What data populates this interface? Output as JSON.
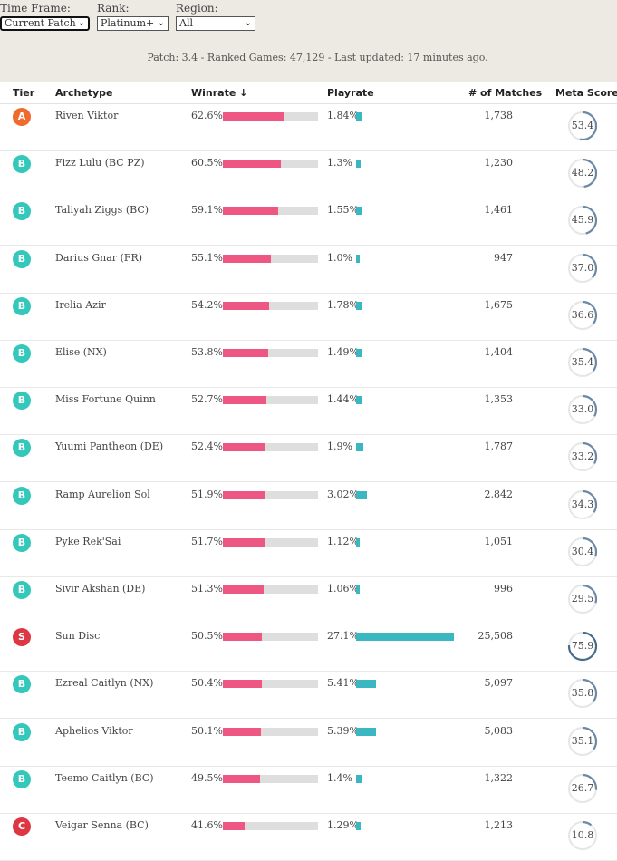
{
  "filters": {
    "time_frame": {
      "label": "Time Frame:",
      "value": "Current Patch"
    },
    "rank": {
      "label": "Rank:",
      "value": "Platinum+"
    },
    "region": {
      "label": "Region:",
      "value": "All"
    }
  },
  "summary": "Patch: 3.4 - Ranked Games: 47,129 - Last updated: 17 minutes ago.",
  "columns": {
    "tier": "Tier",
    "archetype": "Archetype",
    "winrate": "Winrate ↓",
    "playrate": "Playrate",
    "matches": "# of Matches",
    "meta_score": "Meta Score"
  },
  "tier_colors": {
    "A": "#ee6b2d",
    "B": "#34c8bb",
    "S": "#dd3744",
    "C": "#dd3744"
  },
  "colors": {
    "winrate_bar": "#ee5683",
    "playrate_bar": "#3ab7c1",
    "score_ring": "#6a89a8",
    "score_ring_s": "#466a8c"
  },
  "rows": [
    {
      "tier": "A",
      "archetype": "Riven Viktor",
      "winrate": "62.6%",
      "playrate": "1.84%",
      "matches": "1,738",
      "meta_score": "53.4"
    },
    {
      "tier": "B",
      "archetype": "Fizz Lulu (BC PZ)",
      "winrate": "60.5%",
      "playrate": "1.3%",
      "matches": "1,230",
      "meta_score": "48.2"
    },
    {
      "tier": "B",
      "archetype": "Taliyah Ziggs (BC)",
      "winrate": "59.1%",
      "playrate": "1.55%",
      "matches": "1,461",
      "meta_score": "45.9"
    },
    {
      "tier": "B",
      "archetype": "Darius Gnar (FR)",
      "winrate": "55.1%",
      "playrate": "1.0%",
      "matches": "947",
      "meta_score": "37.0"
    },
    {
      "tier": "B",
      "archetype": "Irelia Azir",
      "winrate": "54.2%",
      "playrate": "1.78%",
      "matches": "1,675",
      "meta_score": "36.6"
    },
    {
      "tier": "B",
      "archetype": "Elise (NX)",
      "winrate": "53.8%",
      "playrate": "1.49%",
      "matches": "1,404",
      "meta_score": "35.4"
    },
    {
      "tier": "B",
      "archetype": "Miss Fortune Quinn",
      "winrate": "52.7%",
      "playrate": "1.44%",
      "matches": "1,353",
      "meta_score": "33.0"
    },
    {
      "tier": "B",
      "archetype": "Yuumi Pantheon (DE)",
      "winrate": "52.4%",
      "playrate": "1.9%",
      "matches": "1,787",
      "meta_score": "33.2"
    },
    {
      "tier": "B",
      "archetype": "Ramp Aurelion Sol",
      "winrate": "51.9%",
      "playrate": "3.02%",
      "matches": "2,842",
      "meta_score": "34.3"
    },
    {
      "tier": "B",
      "archetype": "Pyke Rek'Sai",
      "winrate": "51.7%",
      "playrate": "1.12%",
      "matches": "1,051",
      "meta_score": "30.4"
    },
    {
      "tier": "B",
      "archetype": "Sivir Akshan (DE)",
      "winrate": "51.3%",
      "playrate": "1.06%",
      "matches": "996",
      "meta_score": "29.5"
    },
    {
      "tier": "S",
      "archetype": "Sun Disc",
      "winrate": "50.5%",
      "playrate": "27.1%",
      "matches": "25,508",
      "meta_score": "75.9"
    },
    {
      "tier": "B",
      "archetype": "Ezreal Caitlyn (NX)",
      "winrate": "50.4%",
      "playrate": "5.41%",
      "matches": "5,097",
      "meta_score": "35.8"
    },
    {
      "tier": "B",
      "archetype": "Aphelios Viktor",
      "winrate": "50.1%",
      "playrate": "5.39%",
      "matches": "5,083",
      "meta_score": "35.1"
    },
    {
      "tier": "B",
      "archetype": "Teemo Caitlyn (BC)",
      "winrate": "49.5%",
      "playrate": "1.4%",
      "matches": "1,322",
      "meta_score": "26.7"
    },
    {
      "tier": "C",
      "archetype": "Veigar Senna (BC)",
      "winrate": "41.6%",
      "playrate": "1.29%",
      "matches": "1,213",
      "meta_score": "10.8"
    }
  ]
}
